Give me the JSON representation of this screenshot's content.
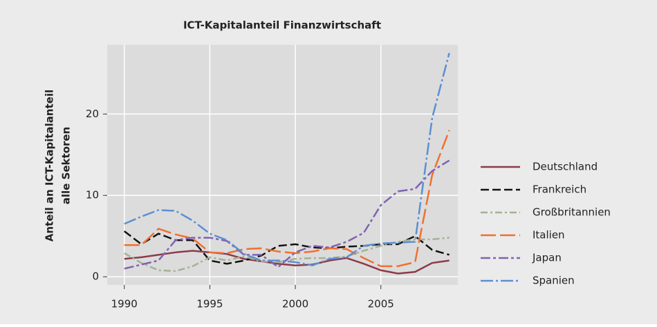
{
  "chart_data": {
    "type": "line",
    "title": "ICT-Kapitalanteil Finanzwirtschaft",
    "y_label": [
      "Anteil an ICT-Kapitalanteil",
      "alle Sektoren"
    ],
    "x": [
      1990,
      1991,
      1992,
      1993,
      1994,
      1995,
      1996,
      1997,
      1998,
      1999,
      2000,
      2001,
      2002,
      2003,
      2004,
      2005,
      2006,
      2007,
      2008,
      2009
    ],
    "xlim": [
      1989,
      2009.5
    ],
    "xticks": [
      1990,
      1995,
      2000,
      2005
    ],
    "ylim": [
      -1,
      28.5
    ],
    "yticks": [
      0,
      10,
      20
    ],
    "grid": true,
    "series": [
      {
        "name": "Deutschland",
        "color": "#8c3a4a",
        "dash": "none",
        "values": [
          2.2,
          2.4,
          2.7,
          3.0,
          3.2,
          3.0,
          2.8,
          2.2,
          1.9,
          1.6,
          1.4,
          1.5,
          2.0,
          2.3,
          1.6,
          0.8,
          0.4,
          0.6,
          1.7,
          2.0
        ]
      },
      {
        "name": "Frankreich",
        "color": "#111111",
        "dash": "12 5",
        "values": [
          5.6,
          4.0,
          5.3,
          4.5,
          4.5,
          2.0,
          1.6,
          2.0,
          2.6,
          3.8,
          4.0,
          3.6,
          3.5,
          3.7,
          3.8,
          4.0,
          4.0,
          5.0,
          3.3,
          2.7
        ]
      },
      {
        "name": "Großbritannien",
        "color": "#a3b295",
        "dash": "10 4 3 4",
        "values": [
          2.9,
          1.7,
          0.8,
          0.7,
          1.3,
          2.4,
          2.0,
          2.5,
          1.9,
          1.8,
          2.2,
          2.3,
          2.3,
          2.5,
          3.2,
          3.8,
          4.3,
          4.6,
          4.6,
          4.8
        ]
      },
      {
        "name": "Italien",
        "color": "#f07030",
        "dash": "22 6",
        "values": [
          3.9,
          3.9,
          5.9,
          5.2,
          4.7,
          3.0,
          2.9,
          3.4,
          3.5,
          3.1,
          2.9,
          3.1,
          3.5,
          3.4,
          2.3,
          1.3,
          1.3,
          1.8,
          12.5,
          18.0
        ]
      },
      {
        "name": "Japan",
        "color": "#8062b0",
        "dash": "14 4 4 4",
        "values": [
          1.0,
          1.5,
          2.0,
          4.5,
          4.8,
          4.8,
          4.4,
          2.7,
          2.7,
          1.2,
          3.0,
          3.8,
          3.6,
          4.3,
          5.4,
          8.8,
          10.5,
          10.8,
          13.0,
          14.3
        ]
      },
      {
        "name": "Spanien",
        "color": "#5b8fd4",
        "dash": "18 4 3 4",
        "values": [
          6.5,
          7.4,
          8.2,
          8.1,
          6.9,
          5.3,
          4.5,
          2.8,
          2.0,
          2.0,
          1.8,
          1.4,
          2.2,
          2.4,
          3.8,
          4.1,
          4.2,
          4.3,
          19.5,
          27.5
        ]
      }
    ]
  }
}
